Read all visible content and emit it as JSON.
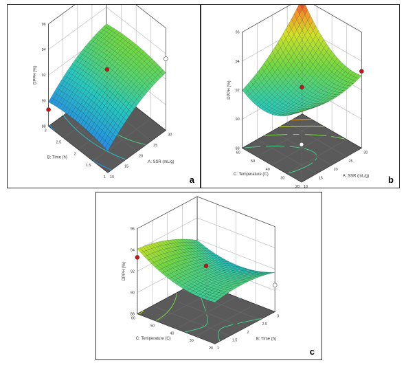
{
  "chart_data": [
    {
      "id": "a",
      "type": "surface3d",
      "panel_label": "a",
      "zlabel": "DPPH (%)",
      "zticks": [
        "88",
        "90",
        "92",
        "94",
        "96"
      ],
      "zlim": [
        88,
        96
      ],
      "xlabel": "A: SSR (mL/g)",
      "xticks": [
        "10",
        "15",
        "20",
        "25",
        "30"
      ],
      "xlim": [
        10,
        30
      ],
      "ylabel": "B: Time (h)",
      "yticks": [
        "1",
        "1.5",
        "2",
        "2.5",
        "3"
      ],
      "ylim": [
        1,
        3
      ],
      "model": {
        "c": 92.0,
        "a": 1.4,
        "b": 0.1,
        "ab": 0.0,
        "aa": -0.5,
        "bb": -0.3
      },
      "design_points": [
        {
          "x": 10,
          "y": 3,
          "z": 89.3,
          "color": "#cc1111"
        },
        {
          "x": 20,
          "y": 2,
          "z": 92.6,
          "color": "#cc1111"
        },
        {
          "x": 30,
          "y": 1,
          "z": 93.6,
          "color": "#ffffff"
        }
      ]
    },
    {
      "id": "b",
      "type": "surface3d",
      "panel_label": "b",
      "zlabel": "DPPH (%)",
      "zticks": [
        "88",
        "90",
        "92",
        "94",
        "96"
      ],
      "zlim": [
        88,
        96
      ],
      "xlabel": "A: SSR (mL/g)",
      "xticks": [
        "10",
        "15",
        "20",
        "25",
        "30"
      ],
      "xlim": [
        10,
        30
      ],
      "ylabel": "C: Temperature (C)",
      "yticks": [
        "20",
        "30",
        "40",
        "50",
        "60"
      ],
      "ylim": [
        20,
        60
      ],
      "model": {
        "c": 92.0,
        "a": 1.0,
        "b": 0.5,
        "ab": 1.0,
        "aa": 0.5,
        "bb": 1.0
      },
      "design_points": [
        {
          "x": 30,
          "y": 60,
          "z": 96.0,
          "color": "#cc1111"
        },
        {
          "x": 20,
          "y": 40,
          "z": 92.2,
          "color": "#cc1111"
        },
        {
          "x": 10,
          "y": 20,
          "z": 90.6,
          "color": "#ffffff"
        },
        {
          "x": 30,
          "y": 20,
          "z": 93.3,
          "color": "#cc1111"
        }
      ]
    },
    {
      "id": "c",
      "type": "surface3d",
      "panel_label": "c",
      "zlabel": "DPPH (%)",
      "zticks": [
        "88",
        "90",
        "92",
        "94",
        "96"
      ],
      "zlim": [
        88,
        96
      ],
      "xlabel": "B: Time (h)",
      "xticks": [
        "1",
        "1.5",
        "2",
        "2.5",
        "3"
      ],
      "xlim": [
        1,
        3
      ],
      "ylabel": "C: Temperature (C)",
      "yticks": [
        "20",
        "30",
        "40",
        "50",
        "60"
      ],
      "ylim": [
        20,
        60
      ],
      "model": {
        "c": 92.0,
        "a": -0.6,
        "b": 0.6,
        "ab": -0.5,
        "aa": -0.4,
        "bb": 0.8
      },
      "design_points": [
        {
          "x": 1,
          "y": 60,
          "z": 93.3,
          "color": "#cc1111"
        },
        {
          "x": 2,
          "y": 40,
          "z": 92.4,
          "color": "#cc1111"
        },
        {
          "x": 3,
          "y": 20,
          "z": 90.5,
          "color": "#ffffff"
        }
      ]
    }
  ]
}
